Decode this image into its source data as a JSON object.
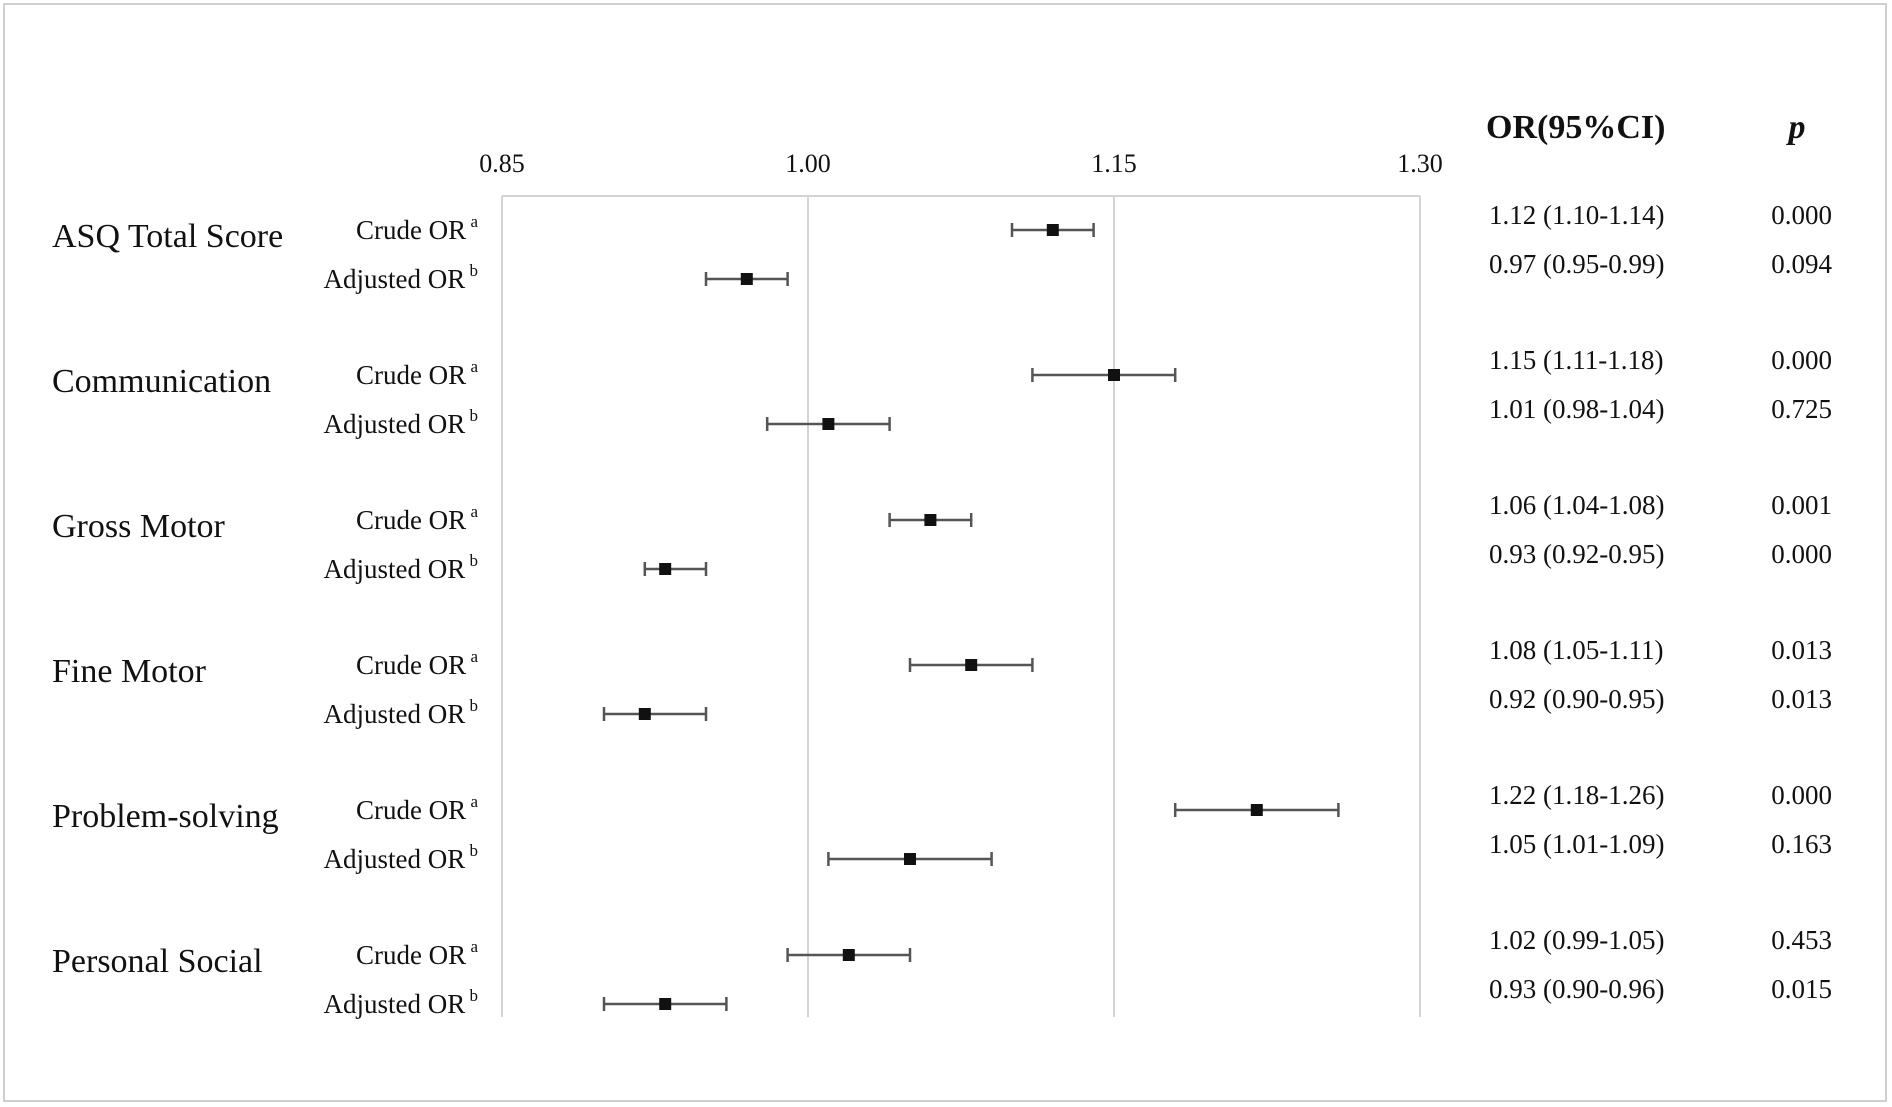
{
  "chart_data": {
    "type": "forest",
    "xlim": [
      0.85,
      1.3
    ],
    "x_ticks": [
      "0.85",
      "1.00",
      "1.15",
      "1.30"
    ],
    "grid": "vertical",
    "reference_line": 1.0,
    "headers": {
      "or_ci": "OR(95%CI)",
      "p": "p"
    },
    "row_labels": {
      "crude": "Crude OR",
      "crude_sup": "a",
      "adjusted": "Adjusted OR",
      "adjusted_sup": "b"
    },
    "groups": [
      {
        "name": "ASQ Total Score",
        "crude": {
          "or": 1.12,
          "lo": 1.1,
          "hi": 1.14,
          "ci_text": "1.12 (1.10-1.14)",
          "p": "0.000"
        },
        "adjusted": {
          "or": 0.97,
          "lo": 0.95,
          "hi": 0.99,
          "ci_text": "0.97 (0.95-0.99)",
          "p": "0.094"
        }
      },
      {
        "name": "Communication",
        "crude": {
          "or": 1.15,
          "lo": 1.11,
          "hi": 1.18,
          "ci_text": "1.15 (1.11-1.18)",
          "p": "0.000"
        },
        "adjusted": {
          "or": 1.01,
          "lo": 0.98,
          "hi": 1.04,
          "ci_text": "1.01 (0.98-1.04)",
          "p": "0.725"
        }
      },
      {
        "name": "Gross Motor",
        "crude": {
          "or": 1.06,
          "lo": 1.04,
          "hi": 1.08,
          "ci_text": "1.06 (1.04-1.08)",
          "p": "0.001"
        },
        "adjusted": {
          "or": 0.93,
          "lo": 0.92,
          "hi": 0.95,
          "ci_text": "0.93 (0.92-0.95)",
          "p": "0.000"
        }
      },
      {
        "name": "Fine Motor",
        "crude": {
          "or": 1.08,
          "lo": 1.05,
          "hi": 1.11,
          "ci_text": "1.08 (1.05-1.11)",
          "p": "0.013"
        },
        "adjusted": {
          "or": 0.92,
          "lo": 0.9,
          "hi": 0.95,
          "ci_text": "0.92 (0.90-0.95)",
          "p": "0.013"
        }
      },
      {
        "name": "Problem-solving",
        "crude": {
          "or": 1.22,
          "lo": 1.18,
          "hi": 1.26,
          "ci_text": "1.22 (1.18-1.26)",
          "p": "0.000"
        },
        "adjusted": {
          "or": 1.05,
          "lo": 1.01,
          "hi": 1.09,
          "ci_text": "1.05 (1.01-1.09)",
          "p": "0.163"
        }
      },
      {
        "name": "Personal Social",
        "crude": {
          "or": 1.02,
          "lo": 0.99,
          "hi": 1.05,
          "ci_text": "1.02 (0.99-1.05)",
          "p": "0.453"
        },
        "adjusted": {
          "or": 0.93,
          "lo": 0.9,
          "hi": 0.96,
          "ci_text": "0.93 (0.90-0.96)",
          "p": "0.015"
        }
      }
    ]
  },
  "colors": {
    "grid": "#d4d4d4",
    "frame": "#cfcfcf",
    "whisker": "#555555",
    "marker": "#111111",
    "text": "#111111"
  }
}
